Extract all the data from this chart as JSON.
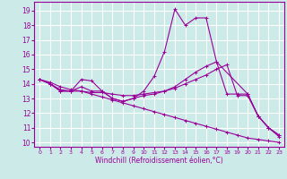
{
  "xlabel": "Windchill (Refroidissement éolien,°C)",
  "background_color": "#cceae7",
  "grid_color": "#ffffff",
  "line_color": "#990099",
  "x_ticks": [
    0,
    1,
    2,
    3,
    4,
    5,
    6,
    7,
    8,
    9,
    10,
    11,
    12,
    13,
    14,
    15,
    16,
    17,
    18,
    19,
    20,
    21,
    22,
    23
  ],
  "y_ticks": [
    10,
    11,
    12,
    13,
    14,
    15,
    16,
    17,
    18,
    19
  ],
  "xlim": [
    -0.5,
    23.5
  ],
  "ylim": [
    9.7,
    19.6
  ],
  "series": [
    {
      "x": [
        0,
        1,
        2,
        3,
        4,
        5,
        6,
        7,
        8,
        9,
        10,
        11,
        12,
        13,
        14,
        15,
        16,
        17,
        20,
        21,
        22,
        23
      ],
      "y": [
        14.3,
        14.0,
        13.5,
        13.5,
        14.3,
        14.2,
        13.5,
        13.0,
        12.8,
        13.0,
        13.5,
        14.5,
        16.2,
        19.1,
        18.0,
        18.5,
        18.5,
        15.5,
        13.3,
        11.8,
        11.0,
        10.5
      ]
    },
    {
      "x": [
        0,
        1,
        2,
        3,
        4,
        5,
        6,
        7,
        8,
        9,
        10,
        11,
        12,
        13,
        14,
        15,
        16,
        17,
        18,
        19,
        20,
        21,
        22,
        23
      ],
      "y": [
        14.3,
        14.0,
        13.5,
        13.5,
        13.8,
        13.5,
        13.5,
        13.0,
        12.8,
        13.0,
        13.2,
        13.3,
        13.5,
        13.8,
        14.3,
        14.8,
        15.2,
        15.5,
        13.3,
        13.3,
        13.3,
        11.8,
        11.0,
        10.5
      ]
    },
    {
      "x": [
        0,
        1,
        2,
        3,
        4,
        5,
        6,
        7,
        8,
        9,
        10,
        11,
        12,
        13,
        14,
        15,
        16,
        17,
        18,
        19,
        20,
        21,
        22,
        23
      ],
      "y": [
        14.3,
        14.1,
        13.8,
        13.6,
        13.5,
        13.3,
        13.1,
        12.9,
        12.7,
        12.5,
        12.3,
        12.1,
        11.9,
        11.7,
        11.5,
        11.3,
        11.1,
        10.9,
        10.7,
        10.5,
        10.3,
        10.2,
        10.1,
        10.0
      ]
    },
    {
      "x": [
        0,
        1,
        2,
        3,
        4,
        5,
        6,
        7,
        8,
        9,
        10,
        11,
        12,
        13,
        14,
        15,
        16,
        17,
        18,
        19,
        20,
        21,
        22,
        23
      ],
      "y": [
        14.3,
        14.0,
        13.6,
        13.5,
        13.5,
        13.4,
        13.4,
        13.3,
        13.2,
        13.2,
        13.3,
        13.4,
        13.5,
        13.7,
        14.0,
        14.3,
        14.6,
        15.0,
        15.3,
        13.2,
        13.2,
        11.8,
        11.0,
        10.4
      ]
    }
  ]
}
